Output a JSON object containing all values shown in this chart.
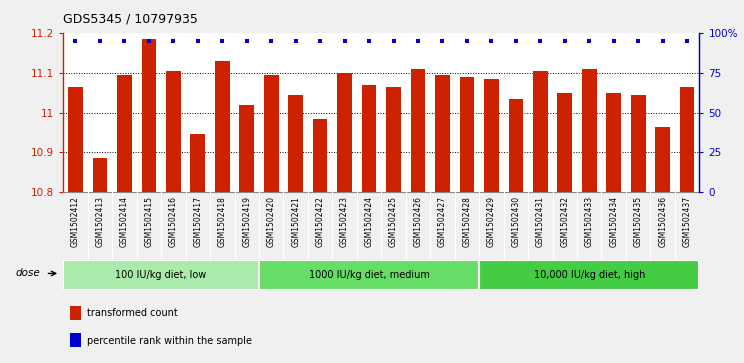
{
  "title": "GDS5345 / 10797935",
  "samples": [
    "GSM1502412",
    "GSM1502413",
    "GSM1502414",
    "GSM1502415",
    "GSM1502416",
    "GSM1502417",
    "GSM1502418",
    "GSM1502419",
    "GSM1502420",
    "GSM1502421",
    "GSM1502422",
    "GSM1502423",
    "GSM1502424",
    "GSM1502425",
    "GSM1502426",
    "GSM1502427",
    "GSM1502428",
    "GSM1502429",
    "GSM1502430",
    "GSM1502431",
    "GSM1502432",
    "GSM1502433",
    "GSM1502434",
    "GSM1502435",
    "GSM1502436",
    "GSM1502437"
  ],
  "bar_values": [
    11.065,
    10.885,
    11.095,
    11.185,
    11.105,
    10.945,
    11.13,
    11.02,
    11.095,
    11.045,
    10.985,
    11.1,
    11.07,
    11.065,
    11.11,
    11.095,
    11.09,
    11.085,
    11.035,
    11.105,
    11.05,
    11.11,
    11.05,
    11.045,
    10.965,
    11.065
  ],
  "percentile_values": [
    95,
    95,
    95,
    95,
    95,
    95,
    95,
    95,
    95,
    95,
    95,
    95,
    95,
    95,
    95,
    95,
    95,
    95,
    95,
    95,
    95,
    95,
    95,
    95,
    95,
    95
  ],
  "bar_color": "#CC2200",
  "dot_color": "#0000CC",
  "ylim_left": [
    10.8,
    11.2
  ],
  "ylim_right": [
    0,
    100
  ],
  "yticks_left": [
    10.8,
    10.9,
    11.0,
    11.1,
    11.2
  ],
  "ytick_labels_left": [
    "10.8",
    "10.9",
    "11",
    "11.1",
    "11.2"
  ],
  "yticks_right": [
    0,
    25,
    50,
    75,
    100
  ],
  "ytick_labels_right": [
    "0",
    "25",
    "50",
    "75",
    "100%"
  ],
  "grid_values": [
    10.9,
    11.0,
    11.1
  ],
  "groups": [
    {
      "label": "100 IU/kg diet, low",
      "start": 0,
      "end": 8
    },
    {
      "label": "1000 IU/kg diet, medium",
      "start": 8,
      "end": 17
    },
    {
      "label": "10,000 IU/kg diet, high",
      "start": 17,
      "end": 26
    }
  ],
  "group_colors": [
    "#AAEAAA",
    "#66DD66",
    "#44CC44"
  ],
  "legend_items": [
    {
      "label": "transformed count",
      "color": "#CC2200"
    },
    {
      "label": "percentile rank within the sample",
      "color": "#0000CC"
    }
  ],
  "dose_label": "dose",
  "fig_bg_color": "#F0F0F0",
  "plot_bg_color": "#FFFFFF",
  "xtick_bg_color": "#D8D8D8"
}
